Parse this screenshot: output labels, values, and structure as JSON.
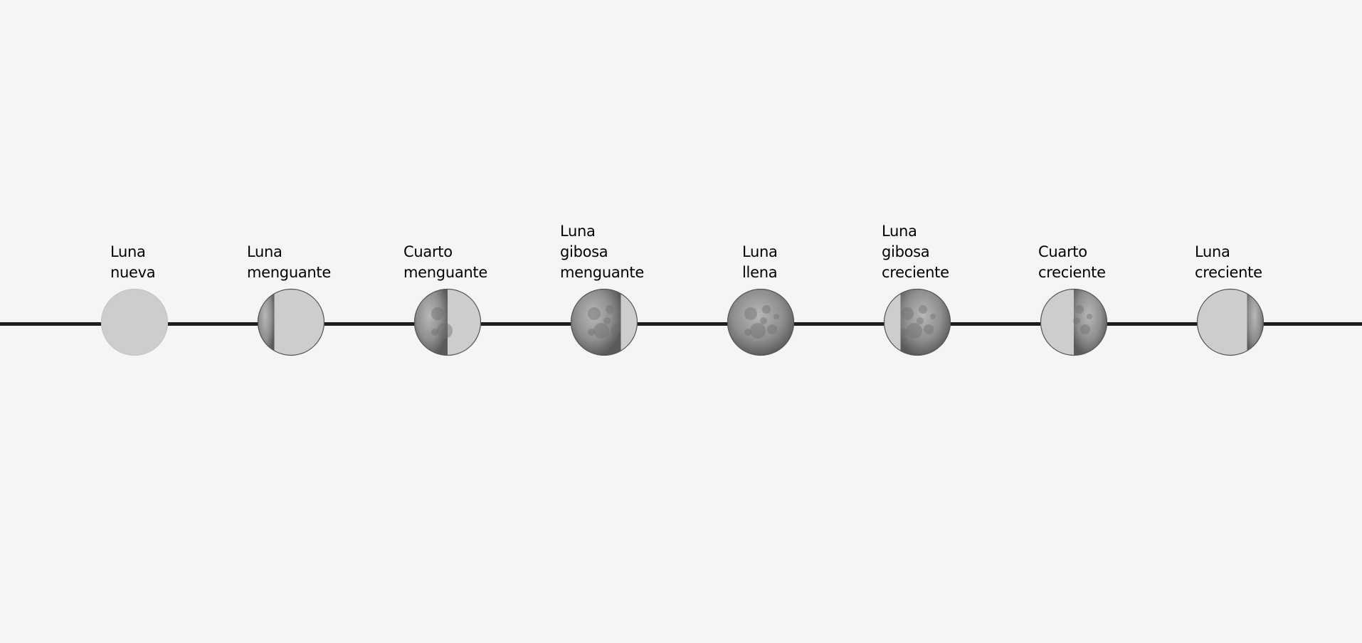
{
  "colors": {
    "background": "#f5f5f5",
    "track": "#1e1e1e",
    "moon_dark": "#cdcdcd",
    "moon_lit": "#8a8a8a",
    "text": "#000000"
  },
  "phases": [
    {
      "label_lines": [
        "Luna",
        "nueva"
      ],
      "icon": "new-moon-icon",
      "illumination": 0,
      "lit_side": "none"
    },
    {
      "label_lines": [
        "Luna",
        "menguante"
      ],
      "icon": "waning-crescent-moon-icon",
      "illumination": 0.25,
      "lit_side": "left"
    },
    {
      "label_lines": [
        "Cuarto",
        "menguante"
      ],
      "icon": "last-quarter-moon-icon",
      "illumination": 0.5,
      "lit_side": "left"
    },
    {
      "label_lines": [
        "Luna",
        "gibosa",
        "menguante"
      ],
      "icon": "waning-gibbous-moon-icon",
      "illumination": 0.75,
      "lit_side": "left"
    },
    {
      "label_lines": [
        "Luna",
        "llena"
      ],
      "icon": "full-moon-icon",
      "illumination": 1,
      "lit_side": "full"
    },
    {
      "label_lines": [
        "Luna",
        "gibosa",
        "creciente"
      ],
      "icon": "waxing-gibbous-moon-icon",
      "illumination": 0.75,
      "lit_side": "right"
    },
    {
      "label_lines": [
        "Cuarto",
        "creciente"
      ],
      "icon": "first-quarter-moon-icon",
      "illumination": 0.5,
      "lit_side": "right"
    },
    {
      "label_lines": [
        "Luna",
        "creciente"
      ],
      "icon": "waxing-crescent-moon-icon",
      "illumination": 0.25,
      "lit_side": "right"
    }
  ]
}
